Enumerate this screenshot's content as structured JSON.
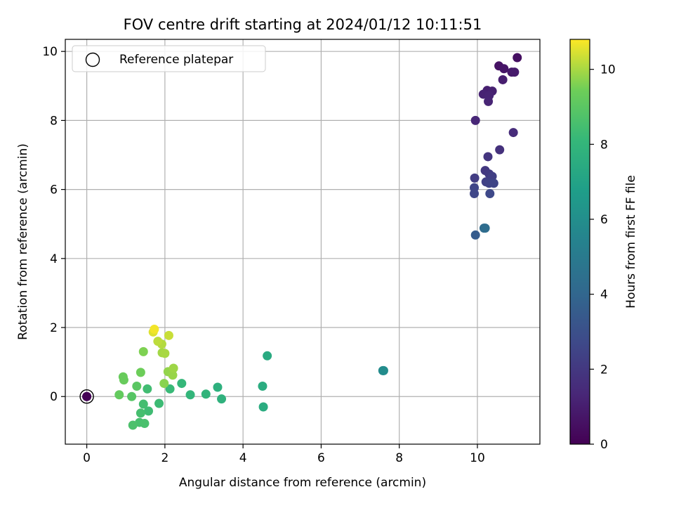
{
  "chart_data": {
    "type": "scatter",
    "title": "FOV centre drift starting at 2024/01/12 10:11:51",
    "xlabel": "Angular distance from reference (arcmin)",
    "ylabel": "Rotation from reference (arcmin)",
    "xlim": [
      -0.55,
      11.6
    ],
    "ylim": [
      -1.38,
      10.35
    ],
    "xticks": [
      "0",
      "2",
      "4",
      "6",
      "8",
      "10"
    ],
    "yticks": [
      "0",
      "2",
      "4",
      "6",
      "8",
      "10"
    ],
    "grid": true,
    "legend": {
      "position": "top-left",
      "entries": [
        "Reference platepar"
      ]
    },
    "reference_point": {
      "x": 0,
      "y": 0,
      "c": 0.05
    },
    "colorbar": {
      "label": "Hours from first FF file",
      "range": [
        0,
        10.8
      ],
      "ticks": [
        "0",
        "2",
        "4",
        "6",
        "8",
        "10"
      ],
      "colormap": "viridis"
    },
    "points": [
      {
        "x": 0.0,
        "y": 0.0,
        "c": 0.1
      },
      {
        "x": 11.02,
        "y": 9.82,
        "c": 0.5
      },
      {
        "x": 10.55,
        "y": 9.58,
        "c": 0.6
      },
      {
        "x": 10.68,
        "y": 9.5,
        "c": 0.7
      },
      {
        "x": 10.88,
        "y": 9.4,
        "c": 0.8
      },
      {
        "x": 10.95,
        "y": 9.4,
        "c": 0.9
      },
      {
        "x": 10.65,
        "y": 9.18,
        "c": 1.0
      },
      {
        "x": 10.25,
        "y": 8.87,
        "c": 1.05
      },
      {
        "x": 10.38,
        "y": 8.85,
        "c": 1.1
      },
      {
        "x": 10.15,
        "y": 8.76,
        "c": 1.15
      },
      {
        "x": 10.3,
        "y": 8.72,
        "c": 1.2
      },
      {
        "x": 10.28,
        "y": 8.55,
        "c": 1.25
      },
      {
        "x": 9.95,
        "y": 8.0,
        "c": 1.3
      },
      {
        "x": 10.92,
        "y": 7.65,
        "c": 1.5
      },
      {
        "x": 10.57,
        "y": 7.15,
        "c": 1.7
      },
      {
        "x": 10.27,
        "y": 6.95,
        "c": 1.9
      },
      {
        "x": 10.2,
        "y": 6.55,
        "c": 2.0
      },
      {
        "x": 10.3,
        "y": 6.45,
        "c": 2.1
      },
      {
        "x": 9.93,
        "y": 6.33,
        "c": 2.2
      },
      {
        "x": 10.38,
        "y": 6.38,
        "c": 2.3
      },
      {
        "x": 10.22,
        "y": 6.22,
        "c": 2.35
      },
      {
        "x": 10.3,
        "y": 6.18,
        "c": 2.4
      },
      {
        "x": 10.42,
        "y": 6.18,
        "c": 2.5
      },
      {
        "x": 9.92,
        "y": 6.05,
        "c": 2.55
      },
      {
        "x": 9.92,
        "y": 5.88,
        "c": 2.6
      },
      {
        "x": 10.32,
        "y": 5.88,
        "c": 2.7
      },
      {
        "x": 10.17,
        "y": 4.88,
        "c": 4.2
      },
      {
        "x": 10.2,
        "y": 4.88,
        "c": 4.3
      },
      {
        "x": 9.95,
        "y": 4.68,
        "c": 3.5
      },
      {
        "x": 7.58,
        "y": 0.75,
        "c": 5.8
      },
      {
        "x": 7.6,
        "y": 0.75,
        "c": 5.9
      },
      {
        "x": 4.62,
        "y": 1.18,
        "c": 7.4
      },
      {
        "x": 4.5,
        "y": 0.3,
        "c": 7.5
      },
      {
        "x": 4.52,
        "y": -0.3,
        "c": 7.5
      },
      {
        "x": 3.35,
        "y": 0.27,
        "c": 7.7
      },
      {
        "x": 3.45,
        "y": -0.07,
        "c": 7.8
      },
      {
        "x": 3.05,
        "y": 0.07,
        "c": 7.9
      },
      {
        "x": 2.65,
        "y": 0.05,
        "c": 8.0
      },
      {
        "x": 2.43,
        "y": 0.38,
        "c": 8.1
      },
      {
        "x": 2.13,
        "y": 0.22,
        "c": 8.2
      },
      {
        "x": 1.85,
        "y": -0.2,
        "c": 8.3
      },
      {
        "x": 1.58,
        "y": -0.42,
        "c": 8.35
      },
      {
        "x": 1.55,
        "y": 0.22,
        "c": 8.4
      },
      {
        "x": 1.45,
        "y": -0.22,
        "c": 8.45
      },
      {
        "x": 1.38,
        "y": -0.48,
        "c": 8.5
      },
      {
        "x": 1.35,
        "y": -0.75,
        "c": 8.55
      },
      {
        "x": 1.48,
        "y": -0.78,
        "c": 8.6
      },
      {
        "x": 1.18,
        "y": -0.83,
        "c": 8.65
      },
      {
        "x": 1.15,
        "y": 0.0,
        "c": 8.9
      },
      {
        "x": 1.28,
        "y": 0.3,
        "c": 9.0
      },
      {
        "x": 0.83,
        "y": 0.05,
        "c": 9.2
      },
      {
        "x": 0.95,
        "y": 0.48,
        "c": 9.3
      },
      {
        "x": 0.93,
        "y": 0.57,
        "c": 9.3
      },
      {
        "x": 1.38,
        "y": 0.7,
        "c": 9.4
      },
      {
        "x": 1.45,
        "y": 1.3,
        "c": 9.6
      },
      {
        "x": 1.98,
        "y": 0.38,
        "c": 9.7
      },
      {
        "x": 2.08,
        "y": 0.72,
        "c": 9.8
      },
      {
        "x": 2.2,
        "y": 0.62,
        "c": 9.85
      },
      {
        "x": 2.22,
        "y": 0.82,
        "c": 9.9
      },
      {
        "x": 1.93,
        "y": 1.27,
        "c": 9.95
      },
      {
        "x": 2.0,
        "y": 1.25,
        "c": 10.0
      },
      {
        "x": 1.92,
        "y": 1.52,
        "c": 10.1
      },
      {
        "x": 1.82,
        "y": 1.6,
        "c": 10.2
      },
      {
        "x": 2.1,
        "y": 1.77,
        "c": 10.3
      },
      {
        "x": 1.7,
        "y": 1.87,
        "c": 10.5
      },
      {
        "x": 1.73,
        "y": 1.95,
        "c": 10.7
      }
    ]
  }
}
